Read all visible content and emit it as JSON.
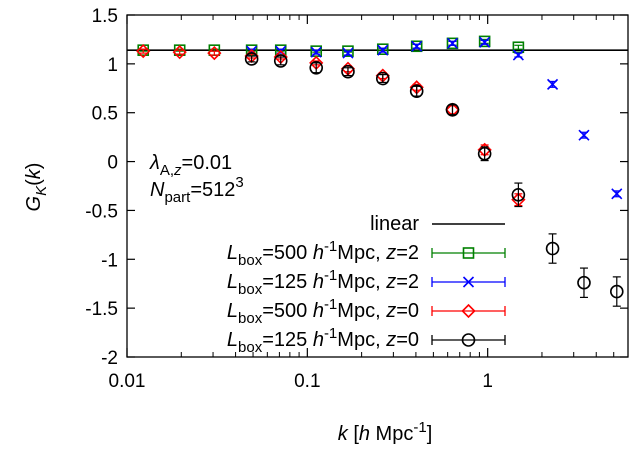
{
  "chart_data": {
    "type": "scatter",
    "x_scale": "log",
    "xlim": [
      0.01,
      6
    ],
    "ylim": [
      -2,
      1.5
    ],
    "xticks": [
      {
        "v": 0.01,
        "label": "0.01"
      },
      {
        "v": 0.1,
        "label": "0.1"
      },
      {
        "v": 1,
        "label": "1"
      }
    ],
    "yticks": [
      {
        "v": -2,
        "label": "-2"
      },
      {
        "v": -1.5,
        "label": "-1.5"
      },
      {
        "v": -1,
        "label": "-1"
      },
      {
        "v": -0.5,
        "label": "-0.5"
      },
      {
        "v": 0,
        "label": "0"
      },
      {
        "v": 0.5,
        "label": "0.5"
      },
      {
        "v": 1,
        "label": "1"
      },
      {
        "v": 1.5,
        "label": "1.5"
      }
    ],
    "xlabel": {
      "k": "k",
      "pre": "[",
      "h": "h",
      "mid": " Mpc",
      "sup": "-1",
      "post": "]"
    },
    "ylabel": {
      "G": "G",
      "sub": "K",
      "arg": "(",
      "k": "k",
      "close": ")"
    },
    "annotations": {
      "lambda": {
        "sym": "λ",
        "sub": "A,",
        "subz": "z",
        "val": "=0.01"
      },
      "npart": {
        "sym": "N",
        "sub": "part",
        "val": "=512",
        "sup": "3"
      }
    },
    "legend_position": "bottom-right",
    "linear_value": 1.14,
    "series": [
      {
        "name": "linear",
        "marker": "line",
        "color": "#000000",
        "legend": {
          "plain": "linear"
        }
      },
      {
        "marker": "square",
        "color": "#008000",
        "legend": {
          "L": "L",
          "sub": "box",
          "eq": "=500 ",
          "h": "h",
          "sup": "-1",
          "mpc": "Mpc, ",
          "z": "z",
          "zval": "=2"
        },
        "x": [
          0.0123,
          0.0196,
          0.0305,
          0.0491,
          0.0712,
          0.112,
          0.168,
          0.262,
          0.404,
          0.638,
          0.962,
          1.48
        ],
        "y": [
          1.14,
          1.14,
          1.14,
          1.14,
          1.14,
          1.13,
          1.13,
          1.15,
          1.18,
          1.21,
          1.23,
          1.17
        ],
        "err": [
          0.01,
          0.01,
          0.01,
          0.01,
          0.01,
          0.01,
          0.01,
          0.01,
          0.02,
          0.02,
          0.02,
          0.02
        ]
      },
      {
        "marker": "x",
        "color": "#0000ff",
        "legend": {
          "L": "L",
          "sub": "box",
          "eq": "=125 ",
          "h": "h",
          "sup": "-1",
          "mpc": "Mpc, ",
          "z": "z",
          "zval": "=2"
        },
        "x": [
          0.0491,
          0.0712,
          0.112,
          0.168,
          0.262,
          0.404,
          0.638,
          0.962,
          1.48,
          2.29,
          3.42,
          5.2
        ],
        "y": [
          1.13,
          1.13,
          1.12,
          1.11,
          1.14,
          1.18,
          1.21,
          1.22,
          1.09,
          0.79,
          0.27,
          -0.33
        ],
        "err": [
          0.02,
          0.02,
          0.02,
          0.02,
          0.02,
          0.02,
          0.02,
          0.02,
          0.02,
          0.03,
          0.03,
          0.03
        ]
      },
      {
        "marker": "diamond",
        "color": "#ff0000",
        "legend": {
          "L": "L",
          "sub": "box",
          "eq": "=500 ",
          "h": "h",
          "sup": "-1",
          "mpc": "Mpc, ",
          "z": "z",
          "zval": "=0"
        },
        "x": [
          0.0123,
          0.0196,
          0.0305,
          0.0491,
          0.0712,
          0.112,
          0.168,
          0.262,
          0.404,
          0.638,
          0.962,
          1.48
        ],
        "y": [
          1.13,
          1.12,
          1.11,
          1.08,
          1.07,
          1.01,
          0.95,
          0.88,
          0.76,
          0.53,
          0.12,
          -0.39
        ],
        "err": [
          0.02,
          0.02,
          0.02,
          0.02,
          0.02,
          0.02,
          0.03,
          0.03,
          0.03,
          0.04,
          0.05,
          0.06
        ]
      },
      {
        "marker": "circle",
        "color": "#000000",
        "legend": {
          "L": "L",
          "sub": "box",
          "eq": "=125 ",
          "h": "h",
          "sup": "-1",
          "mpc": "Mpc, ",
          "z": "z",
          "zval": "=0"
        },
        "x": [
          0.0491,
          0.0712,
          0.112,
          0.168,
          0.262,
          0.404,
          0.638,
          0.962,
          1.48,
          2.29,
          3.42,
          5.2
        ],
        "y": [
          1.05,
          1.03,
          0.96,
          0.92,
          0.85,
          0.72,
          0.53,
          0.08,
          -0.34,
          -0.89,
          -1.24,
          -1.33
        ],
        "err": [
          0.03,
          0.04,
          0.05,
          0.04,
          0.04,
          0.05,
          0.05,
          0.07,
          0.12,
          0.15,
          0.15,
          0.15
        ]
      }
    ]
  }
}
